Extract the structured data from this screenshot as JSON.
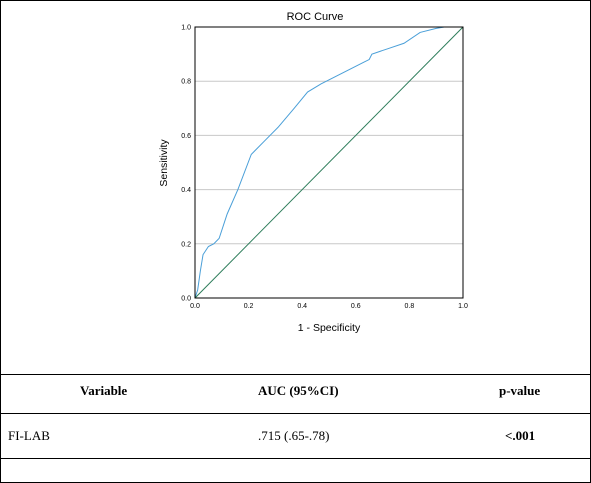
{
  "chart_data": {
    "type": "line",
    "title": "ROC Curve",
    "xlabel": "1 - Specificity",
    "ylabel": "Sensitivity",
    "xlim": [
      0,
      1
    ],
    "ylim": [
      0,
      1
    ],
    "x_ticks": [
      "0.0",
      "0.2",
      "0.4",
      "0.6",
      "0.8",
      "1.0"
    ],
    "y_ticks": [
      "0.0",
      "0.2",
      "0.4",
      "0.6",
      "0.8",
      "1.0"
    ],
    "grid": "horizontal",
    "series": [
      {
        "color": "#4a9fd8",
        "x": [
          0.0,
          0.01,
          0.02,
          0.03,
          0.05,
          0.07,
          0.09,
          0.12,
          0.16,
          0.21,
          0.26,
          0.31,
          0.37,
          0.42,
          0.47,
          0.55,
          0.63,
          0.65,
          0.66,
          0.72,
          0.78,
          0.84,
          0.9,
          0.93,
          1.0
        ],
        "y": [
          0.0,
          0.03,
          0.1,
          0.16,
          0.19,
          0.2,
          0.22,
          0.31,
          0.4,
          0.53,
          0.58,
          0.63,
          0.7,
          0.76,
          0.79,
          0.83,
          0.87,
          0.88,
          0.9,
          0.92,
          0.94,
          0.98,
          0.995,
          1.0,
          1.0
        ]
      },
      {
        "color": "#2e7d5b",
        "x": [
          0.0,
          1.0
        ],
        "y": [
          0.0,
          1.0
        ]
      }
    ]
  },
  "table": {
    "headers": [
      "Variable",
      "AUC (95%CI)",
      "p-value"
    ],
    "rows": [
      [
        "FI-LAB",
        ".715 (.65-.78)",
        "<.001"
      ]
    ]
  }
}
